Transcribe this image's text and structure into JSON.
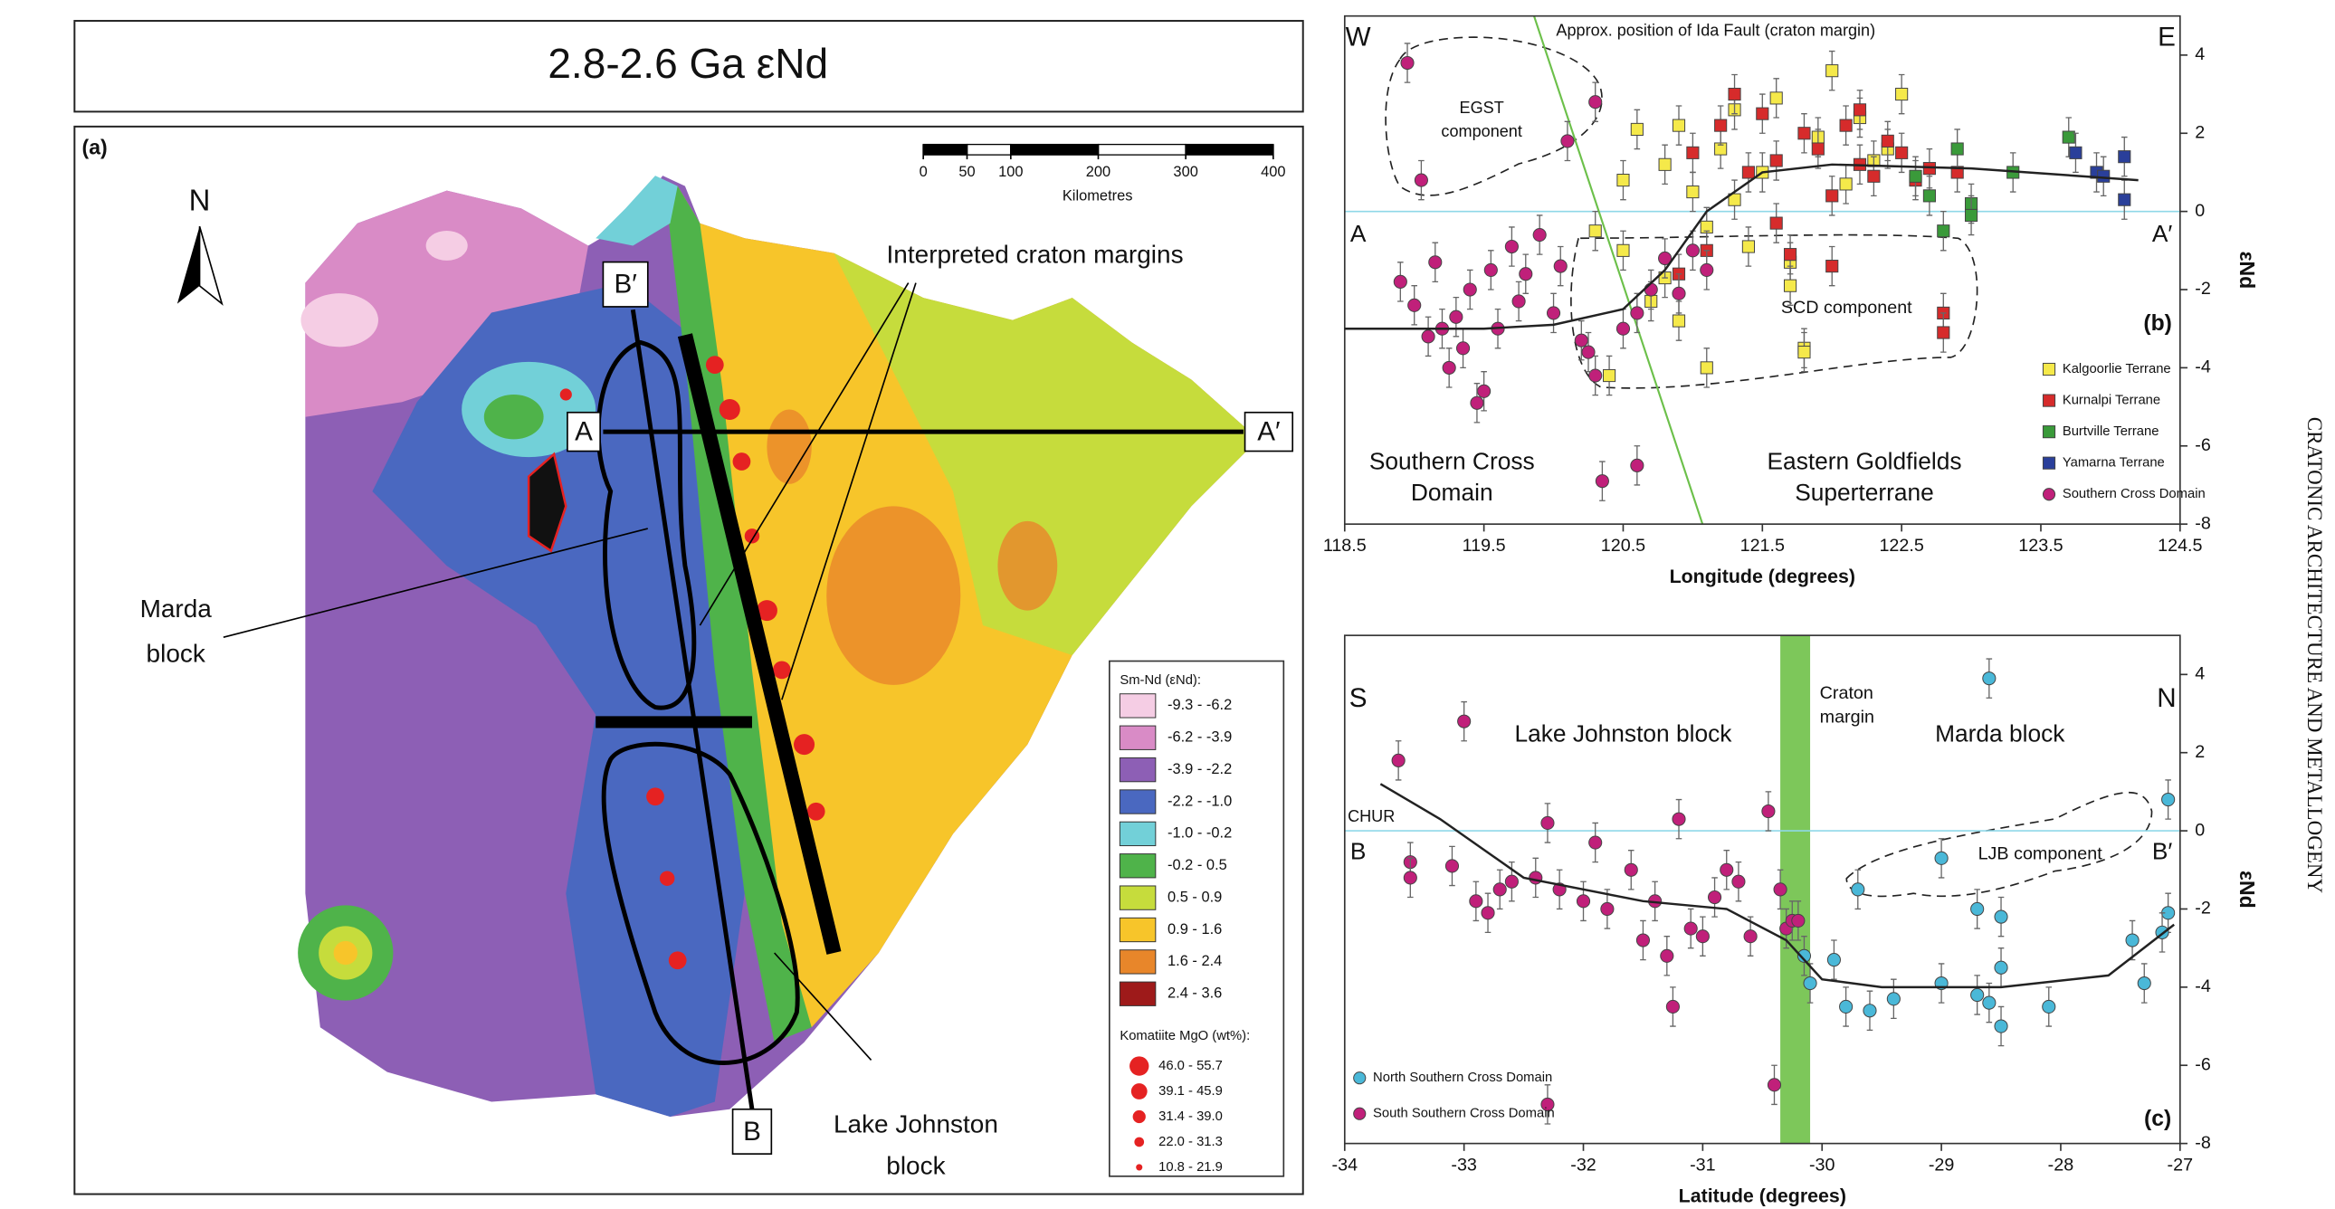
{
  "figure": {
    "title": "2.8-2.6 Ga εNd",
    "side_text": "CRATONIC ARCHITECTURE AND METALLOGENY",
    "panel_a": {
      "label": "(a)",
      "north": "N",
      "craton_margins": "Interpreted craton margins",
      "marda": [
        "Marda",
        "block"
      ],
      "lake_johnston": [
        "Lake Johnston",
        "block"
      ],
      "sections": [
        "A",
        "A′",
        "B",
        "B′"
      ],
      "scale_bar": {
        "ticks": [
          0,
          50,
          100,
          200,
          300,
          400
        ],
        "unit": "Kilometres"
      },
      "legend": {
        "title": "Sm-Nd (εNd):",
        "entries": [
          {
            "label": "-9.3 - -6.2",
            "color": "#f5cde4"
          },
          {
            "label": "-6.2 - -3.9",
            "color": "#d98bc6"
          },
          {
            "label": "-3.9 - -2.2",
            "color": "#8d5fb5"
          },
          {
            "label": "-2.2 - -1.0",
            "color": "#4a68c0"
          },
          {
            "label": "-1.0 - -0.2",
            "color": "#72d0d8"
          },
          {
            "label": "-0.2 - 0.5",
            "color": "#4fb34a"
          },
          {
            "label": "0.5 - 0.9",
            "color": "#c6dc3c"
          },
          {
            "label": "0.9 - 1.6",
            "color": "#f7c52a"
          },
          {
            "label": "1.6 - 2.4",
            "color": "#e8862a"
          },
          {
            "label": "2.4 - 3.6",
            "color": "#9e1a1a"
          }
        ]
      },
      "mgo_legend": {
        "title": "Komatiite MgO (wt%):",
        "color": "#e52222",
        "entries": [
          "46.0 - 55.7",
          "39.1 - 45.9",
          "31.4 - 39.0",
          "22.0 - 31.3",
          "10.8 - 21.9"
        ]
      }
    }
  },
  "chart_data": [
    {
      "type": "scatter",
      "panel_label": "(b)",
      "x_label": "Longitude (degrees)",
      "y_label": "εNd",
      "xlim": [
        118.5,
        124.5
      ],
      "xticks": [
        118.5,
        119.5,
        120.5,
        121.5,
        122.5,
        123.5,
        124.5
      ],
      "ylim": [
        -8,
        5
      ],
      "yticks": [
        -8,
        -6,
        -4,
        -2,
        0,
        2,
        4
      ],
      "error": 0.5,
      "legend": "lower right",
      "reference_line": {
        "value": 0,
        "color": "#8fd8e8"
      },
      "fault_line": {
        "x": [
          119.86,
          121.07
        ],
        "y": [
          5,
          -8
        ],
        "color": "#6cc04a",
        "label": "Approx. position of Ida Fault (craton margin)"
      },
      "trend": {
        "x": [
          118.5,
          119.5,
          120.0,
          120.5,
          120.8,
          121.1,
          121.5,
          122.0,
          123.0,
          124.2
        ],
        "y": [
          -3.0,
          -3.0,
          -2.9,
          -2.5,
          -1.5,
          0.0,
          1.0,
          1.2,
          1.1,
          0.8
        ]
      },
      "annotations": [
        [
          "W"
        ],
        [
          "E"
        ],
        [
          "A"
        ],
        [
          "A′"
        ],
        [
          "EGST",
          "component"
        ],
        [
          "SCD component"
        ],
        [
          "Southern Cross",
          "Domain"
        ],
        [
          "Eastern Goldfields",
          "Superterrane"
        ]
      ],
      "series": [
        {
          "name": "Kalgoorlie Terrane",
          "color": "#f5e94a",
          "marker": "square",
          "x": [
            120.3,
            120.4,
            120.5,
            120.6,
            120.7,
            120.8,
            120.9,
            121.0,
            121.1,
            121.2,
            121.3,
            121.4,
            121.5,
            121.6,
            121.7,
            121.8,
            121.9,
            122.0,
            122.1,
            122.2,
            122.3,
            122.5,
            120.5,
            120.8,
            121.1,
            121.3,
            121.7,
            121.8,
            122.4,
            120.9
          ],
          "y": [
            -0.5,
            -4.2,
            0.8,
            2.1,
            -2.3,
            1.2,
            -2.8,
            0.5,
            -4.0,
            1.6,
            2.6,
            -0.9,
            1.0,
            2.9,
            -1.3,
            -3.5,
            1.9,
            3.6,
            0.7,
            2.4,
            1.3,
            3.0,
            -1.0,
            -1.7,
            -0.4,
            0.3,
            -1.9,
            -3.6,
            1.6,
            2.2
          ]
        },
        {
          "name": "Kurnalpi Terrane",
          "color": "#d62b2b",
          "marker": "square",
          "x": [
            120.9,
            121.0,
            121.2,
            121.4,
            121.5,
            121.6,
            121.7,
            121.8,
            121.9,
            122.0,
            122.1,
            122.2,
            122.3,
            122.4,
            122.5,
            122.6,
            122.7,
            122.8,
            121.3,
            121.6,
            122.0,
            122.2,
            122.8,
            122.9,
            121.1
          ],
          "y": [
            -1.6,
            1.5,
            2.2,
            1.0,
            2.5,
            1.3,
            -1.1,
            2.0,
            1.6,
            0.4,
            2.2,
            1.2,
            0.9,
            1.8,
            1.5,
            0.8,
            1.1,
            -2.6,
            3.0,
            -0.3,
            -1.4,
            2.6,
            -3.1,
            1.0,
            -1.0
          ]
        },
        {
          "name": "Burtville Terrane",
          "color": "#3a9a3a",
          "marker": "square",
          "x": [
            122.6,
            122.8,
            122.9,
            123.0,
            123.3,
            123.7,
            123.0,
            122.7
          ],
          "y": [
            0.9,
            -0.5,
            1.6,
            0.2,
            1.0,
            1.9,
            -0.1,
            0.4
          ]
        },
        {
          "name": "Yamarna Terrane",
          "color": "#2a3f9a",
          "marker": "square",
          "x": [
            123.75,
            123.9,
            124.1,
            124.1,
            123.95
          ],
          "y": [
            1.5,
            1.0,
            1.4,
            0.3,
            0.9
          ]
        },
        {
          "name": "Southern Cross Domain",
          "color": "#c0207a",
          "marker": "circle",
          "x": [
            118.95,
            119.05,
            118.9,
            119.0,
            119.1,
            119.2,
            119.25,
            119.3,
            119.35,
            119.4,
            119.5,
            119.55,
            119.6,
            119.7,
            119.75,
            119.8,
            119.9,
            120.0,
            120.1,
            120.2,
            120.3,
            120.35,
            120.5,
            120.6,
            120.7,
            120.8,
            120.9,
            121.0,
            121.1,
            120.3,
            120.6,
            120.25,
            119.15,
            119.45,
            120.05
          ],
          "y": [
            3.8,
            0.8,
            -1.8,
            -2.4,
            -3.2,
            -3.0,
            -4.0,
            -2.7,
            -3.5,
            -2.0,
            -4.6,
            -1.5,
            -3.0,
            -0.9,
            -2.3,
            -1.6,
            -0.6,
            -2.6,
            1.8,
            -3.3,
            2.8,
            -6.9,
            -3.0,
            -6.5,
            -2.0,
            -1.2,
            -2.1,
            -1.0,
            -1.5,
            -4.2,
            -2.6,
            -3.6,
            -1.3,
            -4.9,
            -1.4
          ]
        }
      ]
    },
    {
      "type": "scatter",
      "panel_label": "(c)",
      "x_label": "Latitude (degrees)",
      "y_label": "εNd",
      "xlim": [
        -34,
        -27
      ],
      "xticks": [
        -34,
        -33,
        -32,
        -31,
        -30,
        -29,
        -28,
        -27
      ],
      "ylim": [
        -8,
        5
      ],
      "yticks": [
        -8,
        -6,
        -4,
        -2,
        0,
        2,
        4
      ],
      "error": 0.5,
      "legend": "lower left",
      "reference_line": {
        "value": 0,
        "color": "#8fd8e8",
        "label": "CHUR"
      },
      "band": {
        "x": [
          -30.35,
          -30.1
        ],
        "color": "#7dc75a",
        "label": [
          "Craton",
          "margin"
        ]
      },
      "trend": {
        "x": [
          -33.7,
          -33.2,
          -32.5,
          -31.5,
          -30.8,
          -30.3,
          -30.0,
          -29.5,
          -28.5,
          -27.6,
          -27.05
        ],
        "y": [
          1.2,
          0.3,
          -1.2,
          -1.8,
          -2.0,
          -2.8,
          -3.8,
          -4.0,
          -4.0,
          -3.7,
          -2.4
        ]
      },
      "annotations": [
        [
          "S"
        ],
        [
          "N"
        ],
        [
          "B"
        ],
        [
          "B′"
        ],
        [
          "Lake Johnston block"
        ],
        [
          "Marda block"
        ],
        [
          "LJB component"
        ]
      ],
      "series": [
        {
          "name": "North Southern Cross Domain",
          "color": "#4ab8d8",
          "marker": "circle",
          "x": [
            -28.6,
            -27.1,
            -29.0,
            -29.7,
            -28.7,
            -28.5,
            -27.4,
            -27.1,
            -27.15,
            -30.15,
            -30.1,
            -29.9,
            -29.8,
            -29.6,
            -29.4,
            -29.0,
            -28.7,
            -28.6,
            -28.5,
            -28.5,
            -28.1,
            -27.3
          ],
          "y": [
            3.9,
            0.8,
            -0.7,
            -1.5,
            -2.0,
            -2.2,
            -2.8,
            -2.1,
            -2.6,
            -3.2,
            -3.9,
            -3.3,
            -4.5,
            -4.6,
            -4.3,
            -3.9,
            -4.2,
            -4.4,
            -5.0,
            -3.5,
            -4.5,
            -3.9
          ]
        },
        {
          "name": "South Southern Cross Domain",
          "color": "#c0207a",
          "marker": "circle",
          "x": [
            -33.55,
            -33.0,
            -32.3,
            -30.4,
            -33.45,
            -33.45,
            -33.1,
            -32.9,
            -32.8,
            -32.7,
            -32.6,
            -32.3,
            -32.2,
            -32.0,
            -31.9,
            -31.8,
            -31.6,
            -31.4,
            -31.3,
            -31.2,
            -31.1,
            -31.0,
            -30.9,
            -30.8,
            -30.6,
            -30.45,
            -30.35,
            -30.3,
            -30.25,
            -30.2,
            -31.25,
            -30.7,
            -32.4,
            -31.5
          ],
          "y": [
            1.8,
            2.8,
            -7.0,
            -6.5,
            -0.8,
            -1.2,
            -0.9,
            -1.8,
            -2.1,
            -1.5,
            -1.3,
            0.2,
            -1.5,
            -1.8,
            -0.3,
            -2.0,
            -1.0,
            -1.8,
            -3.2,
            0.3,
            -2.5,
            -2.7,
            -1.7,
            -1.0,
            -2.7,
            0.5,
            -1.5,
            -2.5,
            -2.3,
            -2.3,
            -4.5,
            -1.3,
            -1.2,
            -2.8
          ]
        }
      ]
    }
  ]
}
